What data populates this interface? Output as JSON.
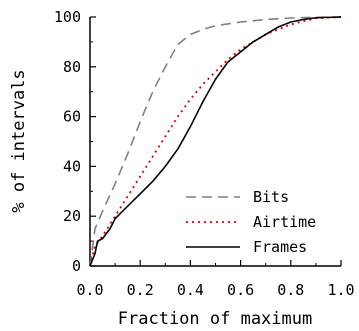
{
  "chart_data": {
    "type": "line",
    "title": "",
    "xlabel": "Fraction of maximum",
    "ylabel": "% of intervals",
    "xlim": [
      0.0,
      1.0
    ],
    "ylim": [
      0,
      100
    ],
    "x_ticks": [
      "0.0",
      "0.2",
      "0.4",
      "0.6",
      "0.8",
      "1.0"
    ],
    "y_ticks": [
      "0",
      "20",
      "40",
      "60",
      "80",
      "100"
    ],
    "grid": false,
    "legend_position": "bottom-right",
    "series": [
      {
        "name": "Bits",
        "color": "#808080",
        "style": "dashed",
        "x": [
          0.0,
          0.02,
          0.05,
          0.1,
          0.15,
          0.2,
          0.25,
          0.3,
          0.35,
          0.4,
          0.45,
          0.5,
          0.6,
          0.7,
          0.8,
          0.9,
          1.0
        ],
        "y": [
          0,
          15,
          22,
          33,
          45,
          58,
          70,
          80,
          89,
          93,
          95,
          96.5,
          98,
          99,
          99.6,
          99.9,
          100
        ]
      },
      {
        "name": "Airtime",
        "color": "#e00000",
        "style": "dotted",
        "x": [
          0.0,
          0.02,
          0.05,
          0.1,
          0.15,
          0.2,
          0.25,
          0.3,
          0.35,
          0.4,
          0.45,
          0.5,
          0.55,
          0.6,
          0.7,
          0.8,
          0.9,
          1.0
        ],
        "y": [
          0,
          8,
          12,
          20,
          28,
          36,
          44,
          52,
          60,
          67,
          73,
          78,
          83,
          87,
          93,
          97,
          99.5,
          100
        ]
      },
      {
        "name": "Frames",
        "color": "#000000",
        "style": "solid",
        "x": [
          0.0,
          0.02,
          0.03,
          0.05,
          0.08,
          0.1,
          0.15,
          0.2,
          0.25,
          0.3,
          0.35,
          0.4,
          0.45,
          0.5,
          0.55,
          0.6,
          0.65,
          0.7,
          0.75,
          0.8,
          0.85,
          0.9,
          1.0
        ],
        "y": [
          0,
          5,
          10,
          11,
          15,
          19,
          24,
          29,
          34,
          40,
          47,
          56,
          66,
          75,
          82,
          86,
          90,
          93,
          96,
          98,
          99,
          99.7,
          100
        ]
      }
    ]
  }
}
